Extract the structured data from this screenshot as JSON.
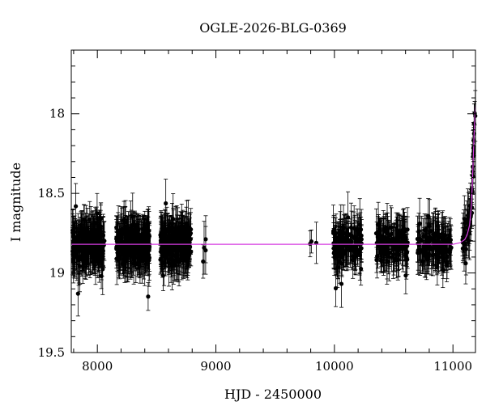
{
  "chart_data": {
    "type": "scatter",
    "title": "OGLE-2026-BLG-0369",
    "xlabel": "HJD - 2450000",
    "ylabel": "I magnitude",
    "xlim": [
      7780,
      11190
    ],
    "ylim": [
      19.5,
      17.6
    ],
    "y_inverted": true,
    "grid": false,
    "legend": "none",
    "x_ticks": [
      {
        "value": 8000,
        "label": "8000"
      },
      {
        "value": 9000,
        "label": "9000"
      },
      {
        "value": 10000,
        "label": "10000"
      },
      {
        "value": 11000,
        "label": "11000"
      }
    ],
    "y_ticks": [
      {
        "value": 18.0,
        "label": "18"
      },
      {
        "value": 18.5,
        "label": "18.5"
      },
      {
        "value": 19.0,
        "label": "19"
      },
      {
        "value": 19.5,
        "label": "19.5"
      }
    ],
    "baseline_magnitude": 18.82,
    "colors": {
      "points": "#000000",
      "model": "#d63be0",
      "axes": "#000000"
    },
    "model_curve": {
      "name": "model",
      "color": "#d63be0",
      "x": [
        7780,
        10900,
        11000,
        11060,
        11100,
        11120,
        11140,
        11155,
        11165,
        11175,
        11185,
        11190
      ],
      "y": [
        18.82,
        18.82,
        18.82,
        18.81,
        18.79,
        18.76,
        18.7,
        18.58,
        18.42,
        18.2,
        18.0,
        17.95
      ]
    },
    "seasons": [
      {
        "start": 7790,
        "end": 8060,
        "density": 1.0
      },
      {
        "start": 8160,
        "end": 8440,
        "density": 1.0
      },
      {
        "start": 8530,
        "end": 8790,
        "density": 1.0
      },
      {
        "start": 8890,
        "end": 8920,
        "density": 0.15
      },
      {
        "start": 9790,
        "end": 9860,
        "density": 0.04
      },
      {
        "start": 9990,
        "end": 10230,
        "density": 0.55
      },
      {
        "start": 10350,
        "end": 10620,
        "density": 0.55
      },
      {
        "start": 10700,
        "end": 10990,
        "density": 0.55
      },
      {
        "start": 11080,
        "end": 11190,
        "density": 0.5
      }
    ],
    "error_bar_mag": 0.12
  }
}
